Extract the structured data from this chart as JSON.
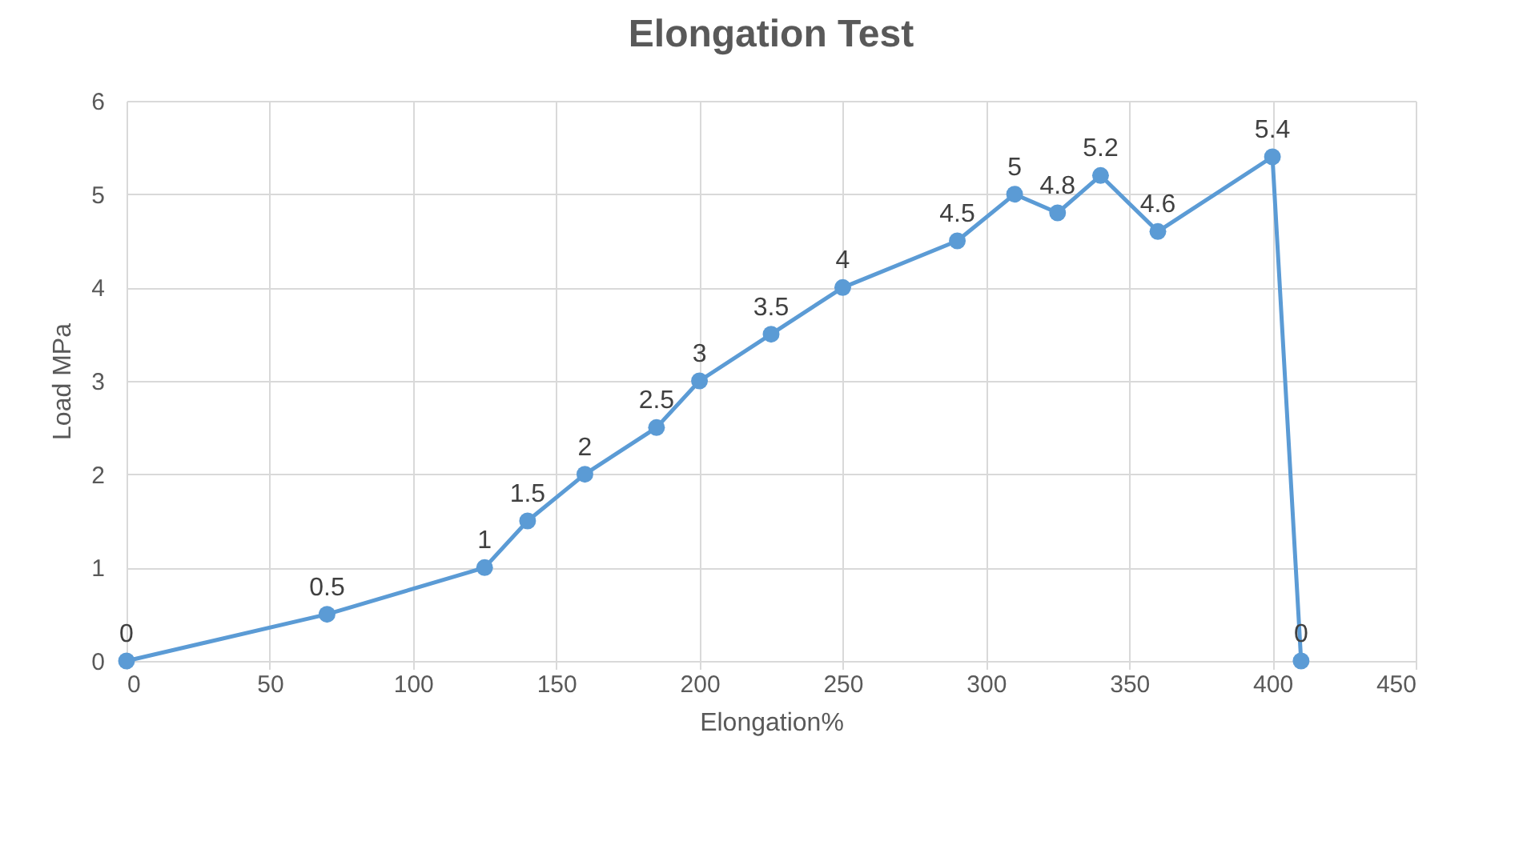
{
  "chart_data": {
    "type": "line",
    "title": "Elongation Test",
    "xlabel": "Elongation%",
    "ylabel": "Load MPa",
    "x": [
      0,
      70,
      125,
      140,
      160,
      185,
      200,
      225,
      250,
      290,
      310,
      325,
      340,
      360,
      400,
      410
    ],
    "series": [
      {
        "color": "#5b9bd5",
        "values": [
          0,
          0.5,
          1,
          1.5,
          2,
          2.5,
          3,
          3.5,
          4,
          4.5,
          5,
          4.8,
          5.2,
          4.6,
          5.4,
          0
        ]
      }
    ],
    "xlim": [
      0,
      450
    ],
    "xticks": [
      0,
      50,
      100,
      150,
      200,
      250,
      300,
      350,
      400,
      450
    ],
    "ylim": [
      0,
      6
    ],
    "yticks": [
      0,
      1,
      2,
      3,
      4,
      5,
      6
    ],
    "grid": true,
    "marker": "circle",
    "line_style": "solid",
    "data_labels": true
  }
}
